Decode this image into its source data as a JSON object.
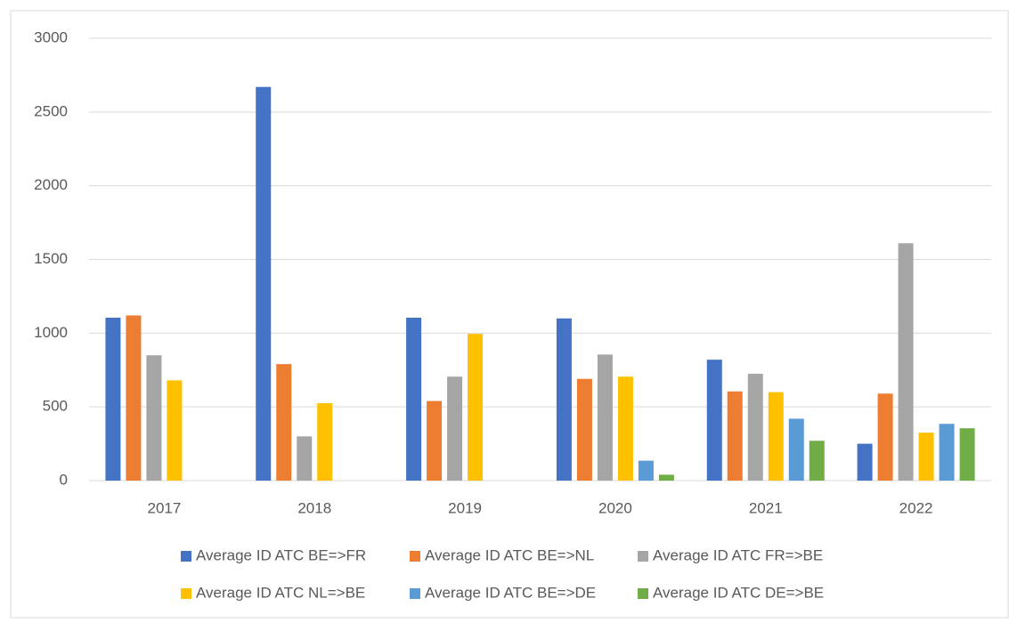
{
  "chart_data": {
    "type": "bar",
    "categories": [
      "2017",
      "2018",
      "2019",
      "2020",
      "2021",
      "2022"
    ],
    "series": [
      {
        "name": "Average ID ATC BE=>FR",
        "color": "#4472c4",
        "values": [
          1105,
          2670,
          1105,
          1100,
          820,
          250
        ]
      },
      {
        "name": "Average ID ATC BE=>NL",
        "color": "#ed7d31",
        "values": [
          1120,
          790,
          540,
          690,
          605,
          590
        ]
      },
      {
        "name": "Average ID ATC FR=>BE",
        "color": "#a5a5a5",
        "values": [
          850,
          300,
          705,
          855,
          725,
          1610
        ]
      },
      {
        "name": "Average ID ATC NL=>BE",
        "color": "#ffc000",
        "values": [
          680,
          525,
          995,
          705,
          600,
          325
        ]
      },
      {
        "name": "Average ID ATC BE=>DE",
        "color": "#5b9bd5",
        "values": [
          null,
          null,
          null,
          135,
          420,
          385
        ]
      },
      {
        "name": "Average ID ATC DE=>BE",
        "color": "#70ad47",
        "values": [
          null,
          null,
          null,
          40,
          270,
          355
        ]
      }
    ],
    "ylim": [
      0,
      3000
    ],
    "yticks": [
      0,
      500,
      1000,
      1500,
      2000,
      2500,
      3000
    ],
    "grid": true
  }
}
